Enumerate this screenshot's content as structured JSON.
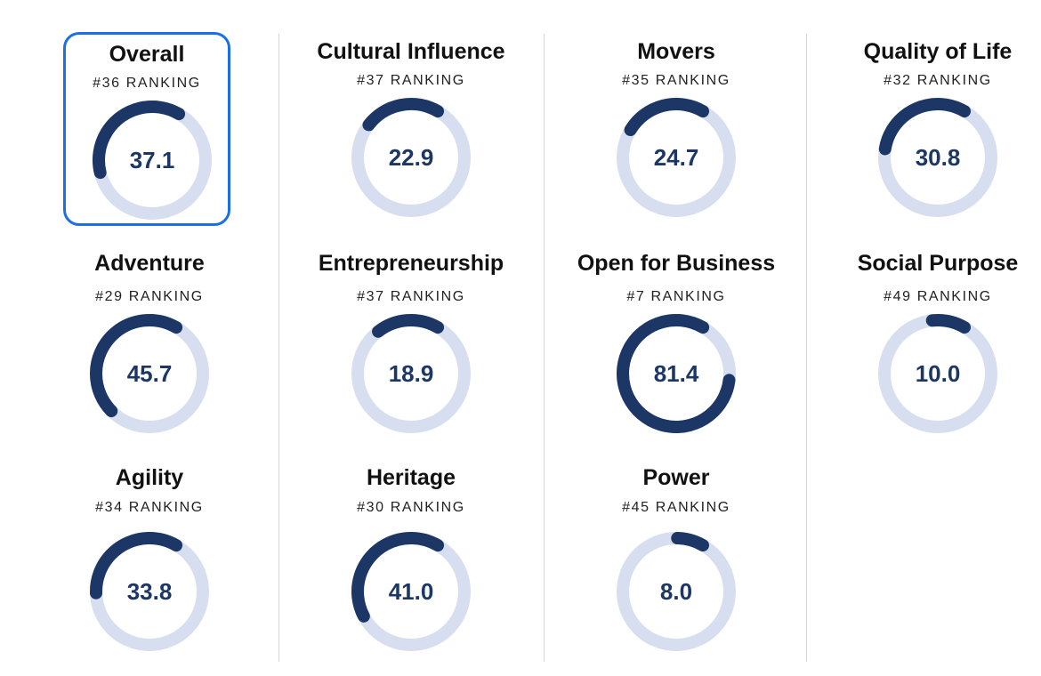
{
  "rank_suffix": "RANKING",
  "colors": {
    "track": "#d7def0",
    "fill": "#1c3766",
    "selected_border": "#1a6fe8"
  },
  "columns": [
    [
      {
        "id": "overall",
        "title": "Overall",
        "rank": "#36",
        "value": "37.1",
        "selected": true
      },
      {
        "id": "adventure",
        "title": "Adventure",
        "rank": "#29",
        "value": "45.7"
      },
      {
        "id": "agility",
        "title": "Agility",
        "rank": "#34",
        "value": "33.8"
      }
    ],
    [
      {
        "id": "cultural-influence",
        "title": "Cultural Influence",
        "rank": "#37",
        "value": "22.9"
      },
      {
        "id": "entrepreneurship",
        "title": "Entrepreneurship",
        "rank": "#37",
        "value": "18.9"
      },
      {
        "id": "heritage",
        "title": "Heritage",
        "rank": "#30",
        "value": "41.0"
      }
    ],
    [
      {
        "id": "movers",
        "title": "Movers",
        "rank": "#35",
        "value": "24.7"
      },
      {
        "id": "open-for-business",
        "title": "Open for Business",
        "rank": "#7",
        "value": "81.4"
      },
      {
        "id": "power",
        "title": "Power",
        "rank": "#45",
        "value": "8.0"
      }
    ],
    [
      {
        "id": "quality-of-life",
        "title": "Quality of Life",
        "rank": "#32",
        "value": "30.8"
      },
      {
        "id": "social-purpose",
        "title": "Social Purpose",
        "rank": "#49",
        "value": "10.0"
      }
    ]
  ]
}
